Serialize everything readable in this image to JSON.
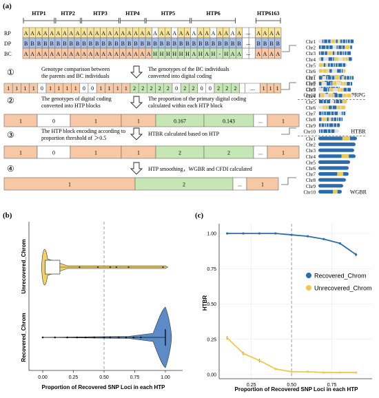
{
  "colors": {
    "yellow": "#f7e39a",
    "blue": "#a9bfe6",
    "salmon": "#f7c8a6",
    "green": "#c6e7b5",
    "dark_blue": "#2b6cae",
    "gold": "#efc94c",
    "chrom_gray": "#e0e0e0",
    "white": "#ffffff"
  },
  "panel_a": {
    "label": "(a)",
    "htp_labels": [
      "HTP1",
      "HTP2",
      "HTP3",
      "HTP4",
      "HTP5",
      "HTP6",
      "HTP6163"
    ],
    "row_labels": [
      "RP",
      "DP",
      "BC"
    ],
    "rp_row": "AAAAAAAAAAAAAAAAAAAAAAAAAAAAAAAAAAAAAAAA",
    "dp_row": "BBBBBBBBBBBBBBBBBBBBBBBBBBBBBBBBBBBBBBBB",
    "bc_row": "AAAAAAAAAAAAAAAAAAAAHHHHHHAHAH-HAAAHAAAA",
    "code_row": "1111011110011112222202200222",
    "ellipsis": "...",
    "steps": [
      "①",
      "②",
      "③",
      "④"
    ],
    "step1_left": [
      "Genotype comparison between",
      "the parents and BC individuals"
    ],
    "step1_right": [
      "The genotypes of the BC individuals",
      "converted into digital coding"
    ],
    "step2_left": [
      "The genotypes of digital coding",
      "converted into HTP blocks"
    ],
    "step2_right": [
      "The proportion of the primary digital coding",
      "calculated within each HTP block"
    ],
    "step3_left": [
      "The HTP block encoding according to",
      "proportion threshold of ＞0.5"
    ],
    "step3_right": [
      "HTBR calculated based on HTP"
    ],
    "step4_text": "HTP smoothing，WGBR and CFDI calculated",
    "row2_values": [
      "1",
      "0",
      "1",
      "1",
      "0.167",
      "0.143",
      "...",
      "1"
    ],
    "row3_values": [
      "1",
      "0",
      "1",
      "1",
      "2",
      "2",
      "...",
      "1"
    ],
    "row4_values": [
      "1",
      "2",
      "...",
      "1"
    ],
    "chromosomes": [
      "Chr1",
      "Chr2",
      "Chr3",
      "Chr4",
      "Chr5",
      "Chr6",
      "Chr7",
      "Chr8",
      "Chr9",
      "Chr10"
    ],
    "group_labels": [
      "PRPG",
      "HTBR",
      "WGBR"
    ]
  },
  "panel_b": {
    "label": "(b)",
    "y_categories": [
      "Unrecovered_Chrom",
      "Recovered_Chrom"
    ],
    "x_ticks": [
      "0.00",
      "0.25",
      "0.50",
      "0.75",
      "1.00"
    ],
    "xlabel": "Proportion of Recovered SNP Loci in each HTP",
    "threshold": 0.5
  },
  "panel_c": {
    "label": "(c)",
    "ylabel": "HTBR",
    "xlabel": "Proportion of Recovered SNP Loci in each HTP",
    "y_ticks": [
      "0.00",
      "0.25",
      "0.50",
      "0.75",
      "1.00"
    ],
    "x_ticks": [
      "0.25",
      "0.50",
      "0.75"
    ],
    "legend": [
      "Recovered_Chrom",
      "Unrecovered_Chrom"
    ],
    "threshold": 0.5
  },
  "chart_data": [
    {
      "type": "line",
      "xlabel": "Proportion of Recovered SNP Loci in each HTP",
      "ylabel": "HTBR",
      "xlim": [
        0.05,
        1.0
      ],
      "ylim": [
        0,
        1.05
      ],
      "x": [
        0.1,
        0.2,
        0.3,
        0.4,
        0.5,
        0.6,
        0.7,
        0.8,
        0.9
      ],
      "series": [
        {
          "name": "Recovered_Chrom",
          "values": [
            1.0,
            1.0,
            1.0,
            1.0,
            0.99,
            0.98,
            0.96,
            0.93,
            0.85
          ]
        },
        {
          "name": "Unrecovered_Chrom",
          "values": [
            0.26,
            0.15,
            0.1,
            0.04,
            0.02,
            0.02,
            0.015,
            0.015,
            0.015
          ]
        }
      ],
      "legend_position": "right",
      "grid": true
    }
  ]
}
